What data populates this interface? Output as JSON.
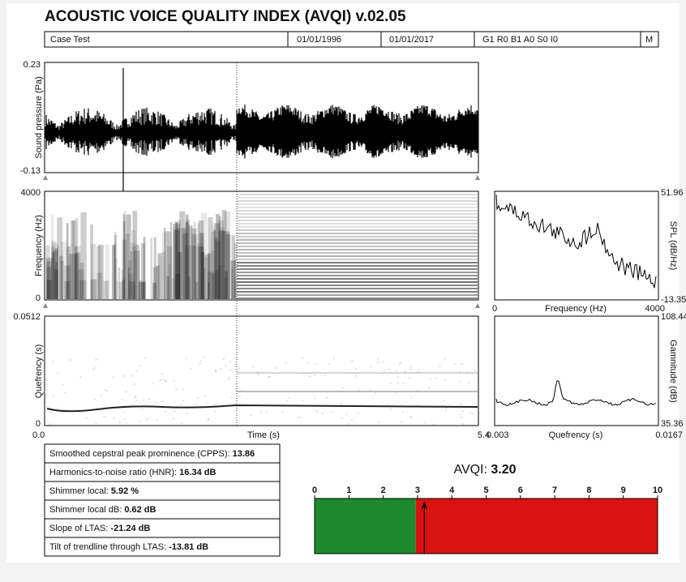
{
  "header": {
    "title": "ACOUSTIC VOICE QUALITY INDEX (AVQI) v.02.05",
    "info": [
      "Case Test",
      "01/01/1996",
      "01/01/2017",
      "G1 R0 B1 A0 S0 I0",
      "M"
    ]
  },
  "waveform": {
    "ylabel": "Sound pressure (Pa)",
    "yticks": [
      0.23,
      -0.13
    ]
  },
  "spectrogram": {
    "ylabel": "Frequency (Hz)",
    "yticks": [
      4000,
      0
    ]
  },
  "cepstrogram": {
    "ylabel": "Quefrency (s)",
    "yticks": [
      0.0512,
      0
    ],
    "xlabel": "Time (s)",
    "xticks": [
      {
        "value": 0,
        "label": "0.0"
      },
      5.4
    ]
  },
  "ltas": {
    "ylabel": "SPL (dB/Hz)",
    "yticks": [
      51.96,
      -13.35
    ],
    "xlabel": "Frequency (Hz)",
    "xticks": [
      0,
      4000
    ]
  },
  "cepstrum": {
    "ylabel": "Gamnitude (dB)",
    "yticks": [
      108.44,
      35.36
    ],
    "xlabel": "Quefrency (s)",
    "xticks": [
      0.003,
      0.0167
    ]
  },
  "measures": [
    {
      "label": "Smoothed cepstral peak prominence (CPPS):",
      "value": "13.86"
    },
    {
      "label": "Harmonics-to-noise ratio (HNR):",
      "value": "16.34 dB"
    },
    {
      "label": "Shimmer local:",
      "value": "5.92 %"
    },
    {
      "label": "Shimmer local dB:",
      "value": "0.62 dB"
    },
    {
      "label": "Slope of LTAS:",
      "value": "-21.24 dB"
    },
    {
      "label": "Tilt of trendline through LTAS:",
      "value": "-13.81 dB"
    }
  ],
  "avqi": {
    "label": "AVQI:",
    "value": 3.2,
    "value_label": "3.20",
    "xlim": [
      0,
      10
    ],
    "xticks": [
      0,
      1,
      2,
      3,
      4,
      5,
      6,
      7,
      8,
      9,
      10
    ],
    "threshold": 2.95,
    "normal_color": "#1f8a2c",
    "abnormal_color": "#d9130f"
  }
}
